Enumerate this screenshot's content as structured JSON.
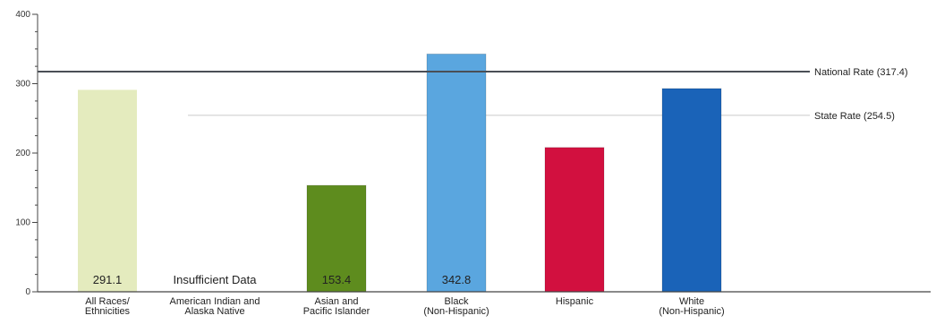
{
  "chart_data": {
    "type": "bar",
    "categories": [
      [
        "All Races/",
        "Ethnicities"
      ],
      [
        "American Indian and",
        "Alaska Native"
      ],
      [
        "Asian and",
        "Pacific Islander"
      ],
      [
        "Black",
        "(Non-Hispanic)"
      ],
      [
        "Hispanic"
      ],
      [
        "White",
        "(Non-Hispanic)"
      ]
    ],
    "values": [
      291.1,
      null,
      153.4,
      342.8,
      208.0,
      293.0
    ],
    "value_labels": [
      "291.1",
      "Insufficient Data",
      "153.4",
      "342.8",
      "",
      ""
    ],
    "colors": [
      "#e4ebbe",
      null,
      "#5e8c1e",
      "#5aa6df",
      "#d2103f",
      "#1a63b8"
    ],
    "ylim": [
      0,
      400
    ],
    "yticks": [
      0,
      100,
      200,
      300,
      400
    ],
    "reference_lines": [
      {
        "label": "National Rate (317.4)",
        "value": 317.4,
        "color": "#4a4f56"
      },
      {
        "label": "State Rate (254.5)",
        "value": 254.5,
        "color": "#dcdcdc"
      }
    ]
  }
}
